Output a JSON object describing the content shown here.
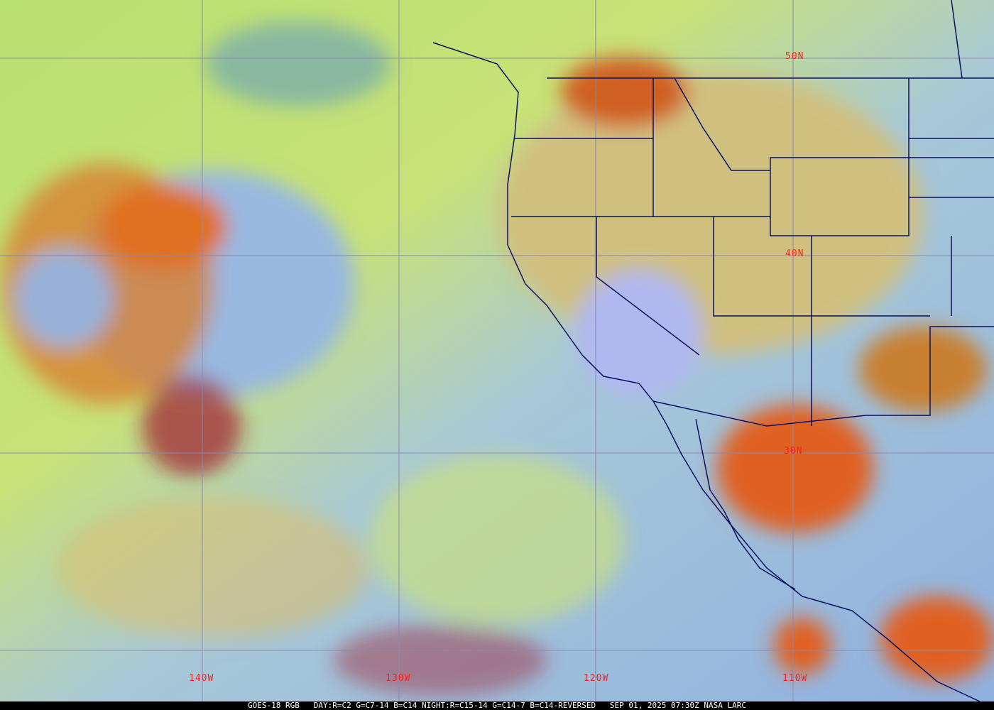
{
  "caption": "GOES-18 RGB   DAY:R=C2 G=C7-14 B=C14 NIGHT:R=C15-14 G=C14-7 B=C14-REVERSED   SEP 01, 2025 07:30Z NASA LARC",
  "latitude_labels": [
    "50N",
    "40N",
    "30N"
  ],
  "longitude_labels": [
    "140W",
    "130W",
    "120W",
    "110W"
  ],
  "colors": {
    "gridline": "#8a8ab0",
    "borders": "#0a1060",
    "label": "#ff2020",
    "clear_ocean": "#9ab8e0",
    "dry_air": "#c8e070",
    "deep_cloud": "#e07020"
  }
}
